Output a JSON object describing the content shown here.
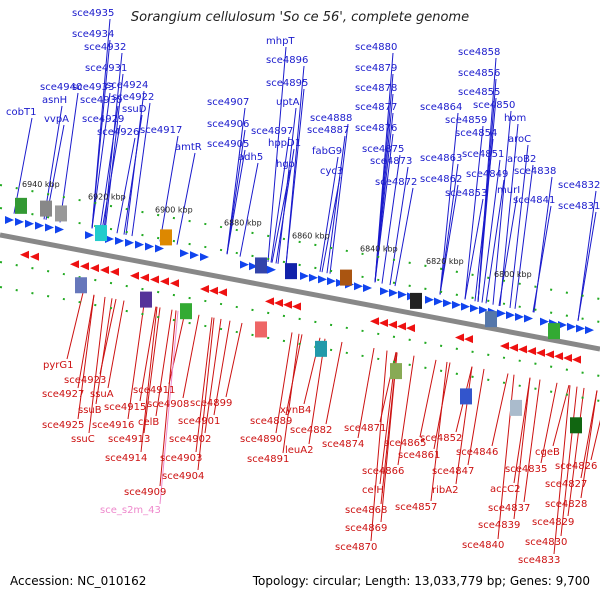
{
  "title": "Sorangium cellulosum 'So ce 56', complete genome",
  "footer": {
    "accession": "Accession: NC_010162",
    "stats": "Topology: circular; Length: 13,033,779 bp; Genes: 9,700"
  },
  "colors": {
    "top_label": "#1a1acc",
    "top_line": "#1a1acc",
    "bottom_label": "#cc1111",
    "bottom_line": "#cc1111",
    "rna_label": "#ee88cc",
    "forward_arrow": "#1144ee",
    "reverse_arrow": "#ee1111",
    "backbone": "#888888"
  },
  "ticks": [
    "6940 kbp",
    "6920 kbp",
    "6900 kbp",
    "6880 kbp",
    "6860 kbp",
    "6840 kbp",
    "6820 kbp",
    "6800 kbp"
  ],
  "top_genes": [
    {
      "name": "cobT1"
    },
    {
      "name": "asnH"
    },
    {
      "name": "vvpA"
    },
    {
      "name": "sce4940"
    },
    {
      "name": "sce4933"
    },
    {
      "name": "sce4935"
    },
    {
      "name": "sce4934"
    },
    {
      "name": "sce4932"
    },
    {
      "name": "sce4931"
    },
    {
      "name": "sce4930"
    },
    {
      "name": "sce4929"
    },
    {
      "name": "sce4926"
    },
    {
      "name": "sce4924"
    },
    {
      "name": "sce4922"
    },
    {
      "name": "ssuD"
    },
    {
      "name": "sce4917"
    },
    {
      "name": "amtR"
    },
    {
      "name": "sce4907"
    },
    {
      "name": "sce4906"
    },
    {
      "name": "sce4905"
    },
    {
      "name": "adh5"
    },
    {
      "name": "sce4897"
    },
    {
      "name": "mhpT"
    },
    {
      "name": "sce4896"
    },
    {
      "name": "sce4895"
    },
    {
      "name": "uptA"
    },
    {
      "name": "hppD1"
    },
    {
      "name": "hgo"
    },
    {
      "name": "sce4888"
    },
    {
      "name": "sce4887"
    },
    {
      "name": "fabG9"
    },
    {
      "name": "cyc3"
    },
    {
      "name": "sce4880"
    },
    {
      "name": "sce4879"
    },
    {
      "name": "sce4878"
    },
    {
      "name": "sce4877"
    },
    {
      "name": "sce4876"
    },
    {
      "name": "sce4875"
    },
    {
      "name": "sce4873"
    },
    {
      "name": "sce4872"
    },
    {
      "name": "sce4858"
    },
    {
      "name": "sce4856"
    },
    {
      "name": "sce4855"
    },
    {
      "name": "sce4864"
    },
    {
      "name": "sce4850"
    },
    {
      "name": "sce4859"
    },
    {
      "name": "hom"
    },
    {
      "name": "sce4854"
    },
    {
      "name": "sce4863"
    },
    {
      "name": "aroC"
    },
    {
      "name": "sce4851"
    },
    {
      "name": "sce4862"
    },
    {
      "name": "aroB2"
    },
    {
      "name": "sce4849"
    },
    {
      "name": "sce4838"
    },
    {
      "name": "sce4853"
    },
    {
      "name": "murI"
    },
    {
      "name": "sce4832"
    },
    {
      "name": "sce4841"
    },
    {
      "name": "sce4831"
    }
  ],
  "bottom_genes": [
    {
      "name": "pyrG1"
    },
    {
      "name": "sce4923"
    },
    {
      "name": "sce4927"
    },
    {
      "name": "ssuA"
    },
    {
      "name": "ssuB"
    },
    {
      "name": "sce4925"
    },
    {
      "name": "sce4916"
    },
    {
      "name": "ssuC"
    },
    {
      "name": "sce4915"
    },
    {
      "name": "sce4911"
    },
    {
      "name": "celB"
    },
    {
      "name": "sce4908"
    },
    {
      "name": "sce4913"
    },
    {
      "name": "sce4914"
    },
    {
      "name": "sce4909"
    },
    {
      "name": "sce4899"
    },
    {
      "name": "sce4901"
    },
    {
      "name": "sce4902"
    },
    {
      "name": "sce4903"
    },
    {
      "name": "sce4904"
    },
    {
      "name": "sce4889"
    },
    {
      "name": "sce4890"
    },
    {
      "name": "sce4891"
    },
    {
      "name": "xynB4"
    },
    {
      "name": "sce4882"
    },
    {
      "name": "leuA2"
    },
    {
      "name": "sce4871"
    },
    {
      "name": "sce4874"
    },
    {
      "name": "sce4865"
    },
    {
      "name": "sce4861"
    },
    {
      "name": "sce4866"
    },
    {
      "name": "celH"
    },
    {
      "name": "sce4868"
    },
    {
      "name": "sce4869"
    },
    {
      "name": "sce4870"
    },
    {
      "name": "sce4857"
    },
    {
      "name": "sce4852"
    },
    {
      "name": "sce4846"
    },
    {
      "name": "sce4847"
    },
    {
      "name": "ribA2"
    },
    {
      "name": "cgeB"
    },
    {
      "name": "sce4835"
    },
    {
      "name": "accC2"
    },
    {
      "name": "sce4837"
    },
    {
      "name": "sce4839"
    },
    {
      "name": "sce4840"
    },
    {
      "name": "sce4826"
    },
    {
      "name": "sce4827"
    },
    {
      "name": "sce4828"
    },
    {
      "name": "sce4829"
    },
    {
      "name": "sce4830"
    },
    {
      "name": "sce4833"
    }
  ],
  "rna_genes": [
    {
      "name": "sce_s2m_43"
    }
  ]
}
